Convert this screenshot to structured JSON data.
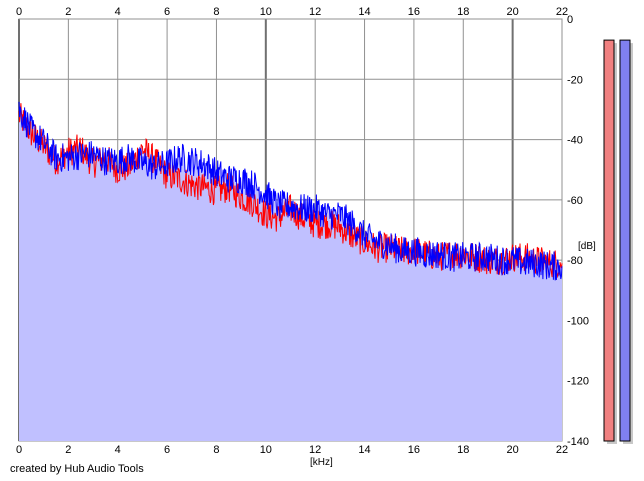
{
  "chart_data": {
    "type": "area",
    "xlabel": "[kHz]",
    "ylabel": "[dB]",
    "xlim": [
      0,
      22
    ],
    "ylim": [
      -140,
      0
    ],
    "x_ticks": [
      "0",
      "2",
      "4",
      "6",
      "8",
      "10",
      "12",
      "14",
      "16",
      "18",
      "20",
      "22"
    ],
    "y_ticks": [
      "0",
      "-20",
      "-40",
      "-60",
      "-80",
      "-100",
      "-120",
      "-140"
    ],
    "grid": true,
    "series": [
      {
        "color": "#ff0000",
        "x": [
          0,
          0.5,
          1,
          1.5,
          2,
          2.5,
          3,
          3.5,
          4,
          4.5,
          5,
          5.5,
          6,
          6.5,
          7,
          7.5,
          8,
          8.5,
          9,
          9.5,
          10,
          10.5,
          11,
          11.5,
          12,
          12.5,
          13,
          13.5,
          14,
          14.5,
          15,
          15.5,
          16,
          16.5,
          17,
          17.5,
          18,
          18.5,
          19,
          19.5,
          20,
          20.5,
          21,
          21.5,
          22
        ],
        "values": [
          -32,
          -38,
          -42,
          -47,
          -44,
          -43,
          -48,
          -46,
          -50,
          -49,
          -43,
          -47,
          -52,
          -53,
          -55,
          -56,
          -57,
          -56,
          -59,
          -61,
          -65,
          -66,
          -63,
          -66,
          -68,
          -68,
          -69,
          -72,
          -74,
          -76,
          -76,
          -77,
          -77,
          -78,
          -79,
          -78,
          -78,
          -79,
          -80,
          -80,
          -79,
          -79,
          -80,
          -81,
          -81
        ]
      },
      {
        "color": "#0000ff",
        "x": [
          0,
          0.5,
          1,
          1.5,
          2,
          2.5,
          3,
          3.5,
          4,
          4.5,
          5,
          5.5,
          6,
          6.5,
          7,
          7.5,
          8,
          8.5,
          9,
          9.5,
          10,
          10.5,
          11,
          11.5,
          12,
          12.5,
          13,
          13.5,
          14,
          14.5,
          15,
          15.5,
          16,
          16.5,
          17,
          17.5,
          18,
          18.5,
          19,
          19.5,
          20,
          20.5,
          21,
          21.5,
          22
        ],
        "values": [
          -30,
          -37,
          -41,
          -46,
          -46,
          -45,
          -45,
          -47,
          -47,
          -46,
          -48,
          -49,
          -48,
          -46,
          -47,
          -48,
          -51,
          -53,
          -53,
          -55,
          -58,
          -62,
          -62,
          -63,
          -63,
          -65,
          -65,
          -68,
          -72,
          -74,
          -75,
          -77,
          -77,
          -78,
          -78,
          -79,
          -79,
          -79,
          -79,
          -80,
          -80,
          -81,
          -81,
          -82,
          -82
        ]
      }
    ],
    "fill_color": "#c0c0ff",
    "level_meters": [
      {
        "color": "#f08080",
        "level_db": -7
      },
      {
        "color": "#8080f0",
        "level_db": -7
      }
    ]
  },
  "footer": {
    "credit": "created by Hub Audio Tools"
  }
}
